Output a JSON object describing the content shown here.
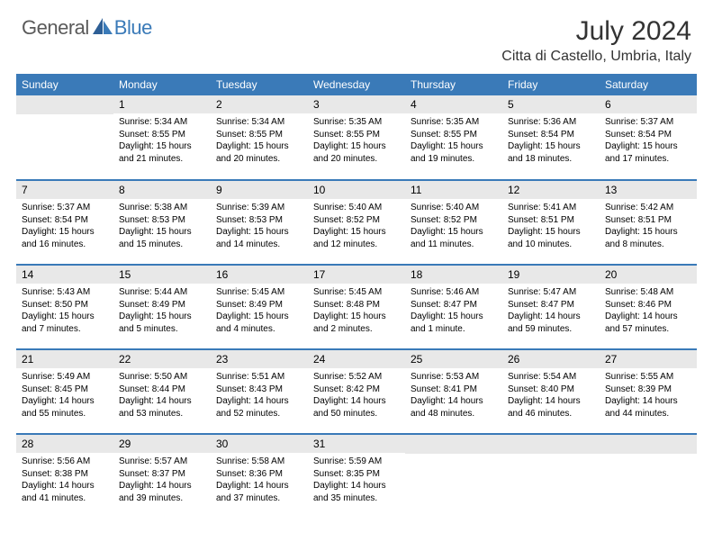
{
  "logo": {
    "text1": "General",
    "text2": "Blue"
  },
  "title": "July 2024",
  "location": "Citta di Castello, Umbria, Italy",
  "day_headers": [
    "Sunday",
    "Monday",
    "Tuesday",
    "Wednesday",
    "Thursday",
    "Friday",
    "Saturday"
  ],
  "colors": {
    "header_bg": "#3a7ab8",
    "header_text": "#ffffff",
    "daynum_bg": "#e8e8e8",
    "divider": "#3a7ab8",
    "logo_gray": "#5a5a5a",
    "logo_blue": "#3a7ab8",
    "title_color": "#333333"
  },
  "weeks": [
    [
      null,
      {
        "n": "1",
        "sr": "Sunrise: 5:34 AM",
        "ss": "Sunset: 8:55 PM",
        "d1": "Daylight: 15 hours",
        "d2": "and 21 minutes."
      },
      {
        "n": "2",
        "sr": "Sunrise: 5:34 AM",
        "ss": "Sunset: 8:55 PM",
        "d1": "Daylight: 15 hours",
        "d2": "and 20 minutes."
      },
      {
        "n": "3",
        "sr": "Sunrise: 5:35 AM",
        "ss": "Sunset: 8:55 PM",
        "d1": "Daylight: 15 hours",
        "d2": "and 20 minutes."
      },
      {
        "n": "4",
        "sr": "Sunrise: 5:35 AM",
        "ss": "Sunset: 8:55 PM",
        "d1": "Daylight: 15 hours",
        "d2": "and 19 minutes."
      },
      {
        "n": "5",
        "sr": "Sunrise: 5:36 AM",
        "ss": "Sunset: 8:54 PM",
        "d1": "Daylight: 15 hours",
        "d2": "and 18 minutes."
      },
      {
        "n": "6",
        "sr": "Sunrise: 5:37 AM",
        "ss": "Sunset: 8:54 PM",
        "d1": "Daylight: 15 hours",
        "d2": "and 17 minutes."
      }
    ],
    [
      {
        "n": "7",
        "sr": "Sunrise: 5:37 AM",
        "ss": "Sunset: 8:54 PM",
        "d1": "Daylight: 15 hours",
        "d2": "and 16 minutes."
      },
      {
        "n": "8",
        "sr": "Sunrise: 5:38 AM",
        "ss": "Sunset: 8:53 PM",
        "d1": "Daylight: 15 hours",
        "d2": "and 15 minutes."
      },
      {
        "n": "9",
        "sr": "Sunrise: 5:39 AM",
        "ss": "Sunset: 8:53 PM",
        "d1": "Daylight: 15 hours",
        "d2": "and 14 minutes."
      },
      {
        "n": "10",
        "sr": "Sunrise: 5:40 AM",
        "ss": "Sunset: 8:52 PM",
        "d1": "Daylight: 15 hours",
        "d2": "and 12 minutes."
      },
      {
        "n": "11",
        "sr": "Sunrise: 5:40 AM",
        "ss": "Sunset: 8:52 PM",
        "d1": "Daylight: 15 hours",
        "d2": "and 11 minutes."
      },
      {
        "n": "12",
        "sr": "Sunrise: 5:41 AM",
        "ss": "Sunset: 8:51 PM",
        "d1": "Daylight: 15 hours",
        "d2": "and 10 minutes."
      },
      {
        "n": "13",
        "sr": "Sunrise: 5:42 AM",
        "ss": "Sunset: 8:51 PM",
        "d1": "Daylight: 15 hours",
        "d2": "and 8 minutes."
      }
    ],
    [
      {
        "n": "14",
        "sr": "Sunrise: 5:43 AM",
        "ss": "Sunset: 8:50 PM",
        "d1": "Daylight: 15 hours",
        "d2": "and 7 minutes."
      },
      {
        "n": "15",
        "sr": "Sunrise: 5:44 AM",
        "ss": "Sunset: 8:49 PM",
        "d1": "Daylight: 15 hours",
        "d2": "and 5 minutes."
      },
      {
        "n": "16",
        "sr": "Sunrise: 5:45 AM",
        "ss": "Sunset: 8:49 PM",
        "d1": "Daylight: 15 hours",
        "d2": "and 4 minutes."
      },
      {
        "n": "17",
        "sr": "Sunrise: 5:45 AM",
        "ss": "Sunset: 8:48 PM",
        "d1": "Daylight: 15 hours",
        "d2": "and 2 minutes."
      },
      {
        "n": "18",
        "sr": "Sunrise: 5:46 AM",
        "ss": "Sunset: 8:47 PM",
        "d1": "Daylight: 15 hours",
        "d2": "and 1 minute."
      },
      {
        "n": "19",
        "sr": "Sunrise: 5:47 AM",
        "ss": "Sunset: 8:47 PM",
        "d1": "Daylight: 14 hours",
        "d2": "and 59 minutes."
      },
      {
        "n": "20",
        "sr": "Sunrise: 5:48 AM",
        "ss": "Sunset: 8:46 PM",
        "d1": "Daylight: 14 hours",
        "d2": "and 57 minutes."
      }
    ],
    [
      {
        "n": "21",
        "sr": "Sunrise: 5:49 AM",
        "ss": "Sunset: 8:45 PM",
        "d1": "Daylight: 14 hours",
        "d2": "and 55 minutes."
      },
      {
        "n": "22",
        "sr": "Sunrise: 5:50 AM",
        "ss": "Sunset: 8:44 PM",
        "d1": "Daylight: 14 hours",
        "d2": "and 53 minutes."
      },
      {
        "n": "23",
        "sr": "Sunrise: 5:51 AM",
        "ss": "Sunset: 8:43 PM",
        "d1": "Daylight: 14 hours",
        "d2": "and 52 minutes."
      },
      {
        "n": "24",
        "sr": "Sunrise: 5:52 AM",
        "ss": "Sunset: 8:42 PM",
        "d1": "Daylight: 14 hours",
        "d2": "and 50 minutes."
      },
      {
        "n": "25",
        "sr": "Sunrise: 5:53 AM",
        "ss": "Sunset: 8:41 PM",
        "d1": "Daylight: 14 hours",
        "d2": "and 48 minutes."
      },
      {
        "n": "26",
        "sr": "Sunrise: 5:54 AM",
        "ss": "Sunset: 8:40 PM",
        "d1": "Daylight: 14 hours",
        "d2": "and 46 minutes."
      },
      {
        "n": "27",
        "sr": "Sunrise: 5:55 AM",
        "ss": "Sunset: 8:39 PM",
        "d1": "Daylight: 14 hours",
        "d2": "and 44 minutes."
      }
    ],
    [
      {
        "n": "28",
        "sr": "Sunrise: 5:56 AM",
        "ss": "Sunset: 8:38 PM",
        "d1": "Daylight: 14 hours",
        "d2": "and 41 minutes."
      },
      {
        "n": "29",
        "sr": "Sunrise: 5:57 AM",
        "ss": "Sunset: 8:37 PM",
        "d1": "Daylight: 14 hours",
        "d2": "and 39 minutes."
      },
      {
        "n": "30",
        "sr": "Sunrise: 5:58 AM",
        "ss": "Sunset: 8:36 PM",
        "d1": "Daylight: 14 hours",
        "d2": "and 37 minutes."
      },
      {
        "n": "31",
        "sr": "Sunrise: 5:59 AM",
        "ss": "Sunset: 8:35 PM",
        "d1": "Daylight: 14 hours",
        "d2": "and 35 minutes."
      },
      null,
      null,
      null
    ]
  ]
}
